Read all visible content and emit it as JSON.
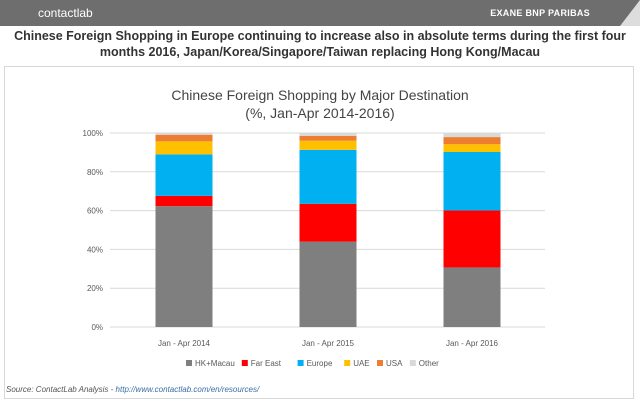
{
  "header": {
    "logo_left": "contactlab",
    "logo_right": "EXANE BNP PARIBAS"
  },
  "headline": "Chinese Foreign Shopping in Europe continuing to increase also in absolute terms during the first four months 2016, Japan/Korea/Singapore/Taiwan replacing Hong Kong/Macau",
  "source": {
    "label": "Source: ContactLab Analysis - ",
    "link": "http://www.contactlab.com/en/resources/"
  },
  "chart_data": {
    "type": "bar",
    "stacked": true,
    "title": "Chinese Foreign Shopping by Major Destination",
    "subtitle": "(%, Jan-Apr 2014-2016)",
    "categories": [
      "Jan - Apr 2014",
      "Jan - Apr 2015",
      "Jan - Apr 2016"
    ],
    "ylim": [
      0,
      100
    ],
    "yticks": [
      "0%",
      "20%",
      "40%",
      "60%",
      "80%",
      "100%"
    ],
    "grid": true,
    "legend": "bottom",
    "series": [
      {
        "name": "HK+Macau",
        "color": "#7f7f7f",
        "values": [
          62.3,
          44.0,
          30.7
        ]
      },
      {
        "name": "Far East",
        "color": "#ff0000",
        "values": [
          5.3,
          19.5,
          29.4
        ]
      },
      {
        "name": "Europe",
        "color": "#00b0f0",
        "values": [
          21.4,
          27.8,
          30.1
        ]
      },
      {
        "name": "UAE",
        "color": "#ffc000",
        "values": [
          6.7,
          4.7,
          4.0
        ]
      },
      {
        "name": "USA",
        "color": "#ed7d31",
        "values": [
          3.4,
          2.5,
          3.7
        ]
      },
      {
        "name": "Other",
        "color": "#d9d9d9",
        "values": [
          0.9,
          1.5,
          2.1
        ]
      }
    ]
  }
}
